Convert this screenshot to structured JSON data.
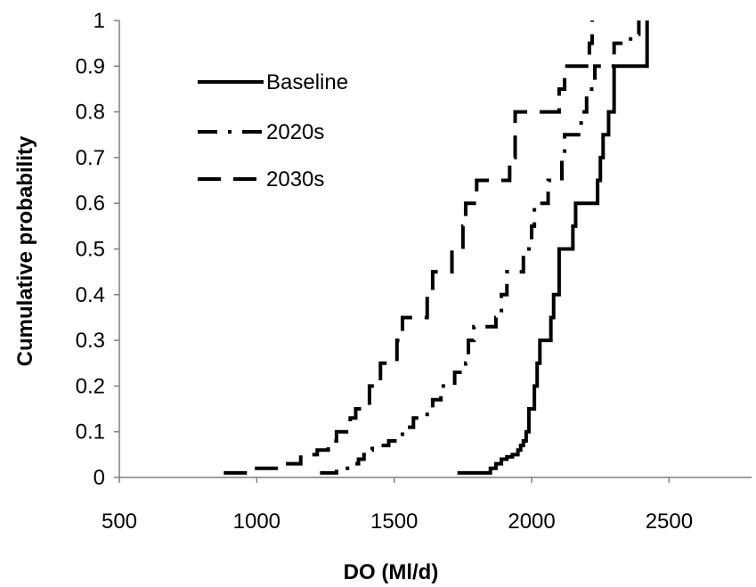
{
  "chart_data": {
    "type": "line",
    "xlabel": "DO (Ml/d)",
    "ylabel": "Cumulative probability",
    "xlim": [
      500,
      2800
    ],
    "ylim": [
      0,
      1
    ],
    "x_ticks": [
      "500",
      "1000",
      "1500",
      "2000",
      "2500"
    ],
    "y_ticks": [
      "0",
      "0.1",
      "0.2",
      "0.3",
      "0.4",
      "0.5",
      "0.6",
      "0.7",
      "0.8",
      "0.9",
      "1"
    ],
    "grid": false,
    "legend_position": "top-left",
    "step_plot": true,
    "series": [
      {
        "name": "Baseline",
        "line_style": "solid",
        "x": [
          1730,
          1850,
          1870,
          1890,
          1910,
          1930,
          1950,
          1960,
          1970,
          1980,
          1990,
          2010,
          2020,
          2030,
          2070,
          2080,
          2100,
          2150,
          2160,
          2240,
          2250,
          2260,
          2280,
          2300,
          2420
        ],
        "y": [
          0.01,
          0.02,
          0.03,
          0.04,
          0.045,
          0.05,
          0.06,
          0.07,
          0.08,
          0.1,
          0.15,
          0.2,
          0.25,
          0.3,
          0.35,
          0.4,
          0.5,
          0.55,
          0.6,
          0.65,
          0.7,
          0.75,
          0.8,
          0.9,
          1.0
        ]
      },
      {
        "name": "2020s",
        "line_style": "dash-dot",
        "x": [
          1230,
          1290,
          1340,
          1370,
          1390,
          1410,
          1420,
          1480,
          1530,
          1540,
          1570,
          1620,
          1640,
          1670,
          1720,
          1760,
          1770,
          1790,
          1870,
          1890,
          1910,
          1970,
          2000,
          2010,
          2060,
          2110,
          2120,
          2180,
          2200,
          2230,
          2300,
          2360,
          2390
        ],
        "y": [
          0.01,
          0.02,
          0.03,
          0.04,
          0.05,
          0.06,
          0.07,
          0.08,
          0.1,
          0.11,
          0.13,
          0.15,
          0.17,
          0.2,
          0.23,
          0.25,
          0.3,
          0.33,
          0.35,
          0.4,
          0.45,
          0.5,
          0.55,
          0.6,
          0.65,
          0.7,
          0.75,
          0.8,
          0.85,
          0.9,
          0.95,
          0.97,
          1.0
        ]
      },
      {
        "name": "2030s",
        "line_style": "dashed",
        "x": [
          880,
          990,
          1100,
          1160,
          1220,
          1260,
          1290,
          1340,
          1360,
          1410,
          1450,
          1510,
          1530,
          1620,
          1640,
          1710,
          1750,
          1760,
          1800,
          1920,
          1940,
          2100,
          2120,
          2210,
          2220
        ],
        "y": [
          0.01,
          0.02,
          0.03,
          0.05,
          0.06,
          0.08,
          0.1,
          0.13,
          0.15,
          0.2,
          0.25,
          0.3,
          0.35,
          0.4,
          0.45,
          0.5,
          0.55,
          0.6,
          0.65,
          0.7,
          0.8,
          0.85,
          0.9,
          0.95,
          1.0
        ]
      }
    ]
  }
}
